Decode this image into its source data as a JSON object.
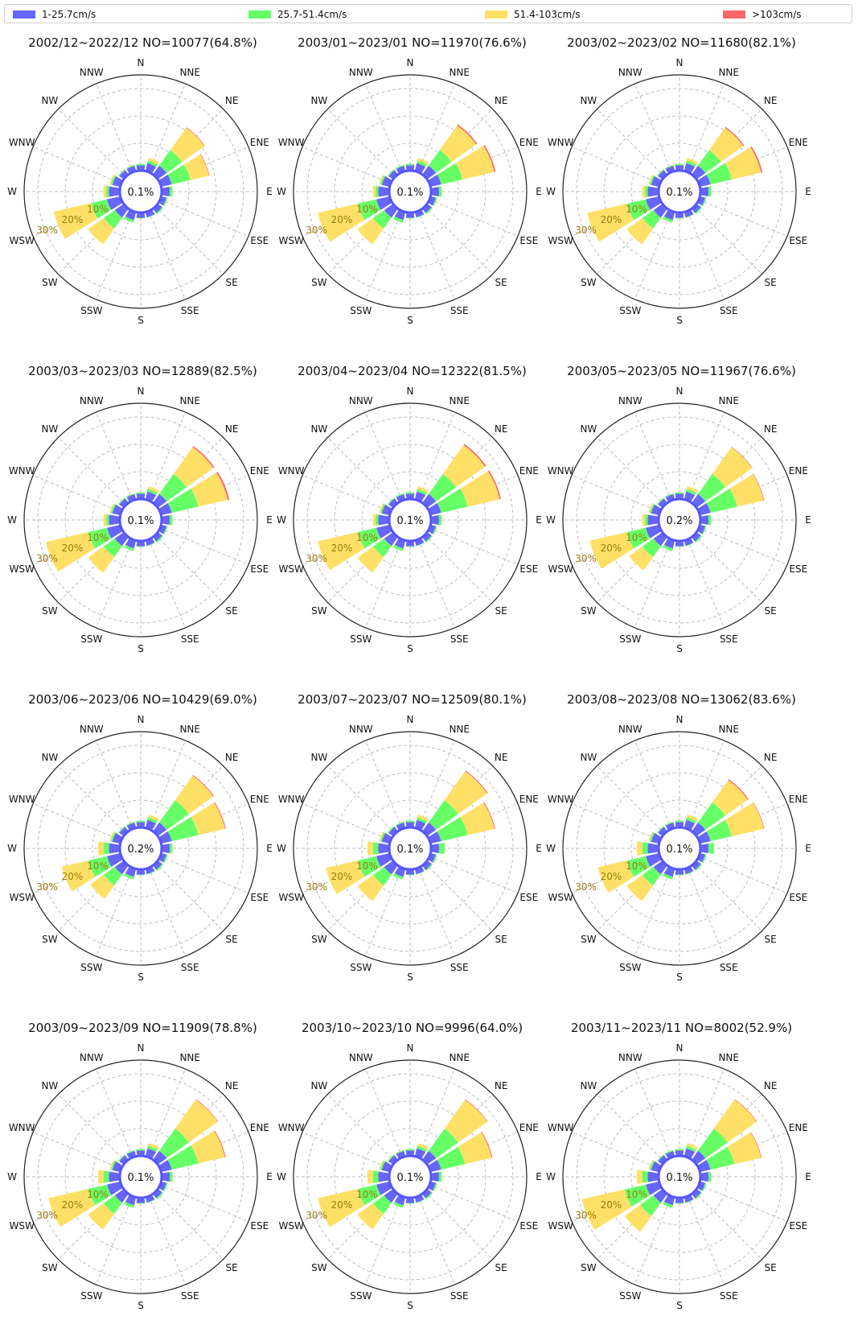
{
  "legend": [
    {
      "label": "1-25.7cm/s",
      "color": "#6666ff"
    },
    {
      "label": "25.7-51.4cm/s",
      "color": "#66ff66"
    },
    {
      "label": "51.4-103cm/s",
      "color": "#ffe066"
    },
    {
      "label": ">103cm/s",
      "color": "#ff6666"
    }
  ],
  "chart_data": {
    "type": "wind-rose",
    "directions": [
      "N",
      "NNE",
      "NE",
      "ENE",
      "E",
      "ESE",
      "SE",
      "SSE",
      "S",
      "SSW",
      "SW",
      "WSW",
      "W",
      "WNW",
      "NW",
      "NNW"
    ],
    "ring_labels": [
      "10%",
      "20%",
      "30%"
    ],
    "ring_values": [
      10,
      20,
      30
    ],
    "rmax": 35,
    "speed_bins": [
      "1-25.7cm/s",
      "25.7-51.4cm/s",
      "51.4-103cm/s",
      ">103cm/s"
    ],
    "panels": [
      {
        "title": "2002/12~2022/12 NO=10077(64.8%)",
        "calm": "0.1%",
        "series": [
          [
            2,
            3,
            4,
            4,
            3,
            2,
            2,
            2,
            2,
            3,
            4,
            5,
            4,
            3,
            2,
            2
          ],
          [
            0.5,
            1,
            7,
            7,
            1,
            0.5,
            0.5,
            0.2,
            0.2,
            1,
            5,
            6,
            1,
            0.6,
            0.4,
            0.4
          ],
          [
            0,
            1,
            10,
            7,
            0,
            0,
            0,
            0,
            0,
            0,
            7,
            14,
            1,
            0.4,
            0,
            0
          ],
          [
            0,
            0,
            0.2,
            0.2,
            0,
            0,
            0,
            0,
            0,
            0,
            0,
            0,
            0,
            0,
            0,
            0
          ]
        ]
      },
      {
        "title": "2003/01~2023/01 NO=11970(76.6%)",
        "calm": "0.1%",
        "series": [
          [
            2,
            3,
            4,
            4,
            3,
            2,
            2,
            2,
            2,
            3,
            4,
            5,
            4,
            3,
            2,
            2
          ],
          [
            0.5,
            1,
            7,
            8,
            1,
            0.5,
            0.5,
            0.2,
            0.2,
            1,
            5,
            7,
            1,
            0.6,
            0.4,
            0.4
          ],
          [
            0,
            1,
            11,
            12,
            0,
            0,
            0,
            0,
            0,
            0,
            7,
            15,
            1,
            0.4,
            0,
            0
          ],
          [
            0,
            0,
            0.5,
            0.5,
            0,
            0,
            0,
            0,
            0,
            0,
            0,
            0,
            0,
            0,
            0,
            0
          ]
        ]
      },
      {
        "title": "2003/02~2023/02 NO=11680(82.1%)",
        "calm": "0.1%",
        "series": [
          [
            2,
            3,
            4,
            4,
            3,
            2,
            2,
            2,
            2,
            3,
            4,
            5,
            4,
            3,
            2,
            2
          ],
          [
            0.5,
            1,
            7,
            8,
            1,
            0.5,
            0.5,
            0.2,
            0.2,
            1,
            5,
            7,
            1,
            0.6,
            0.4,
            0.4
          ],
          [
            0,
            1,
            10,
            11,
            0,
            0,
            0,
            0,
            0,
            0,
            7,
            15,
            1,
            0.4,
            0,
            0
          ],
          [
            0,
            0,
            0.4,
            0.5,
            0,
            0,
            0,
            0,
            0,
            0,
            0,
            0,
            0,
            0,
            0,
            0
          ]
        ]
      },
      {
        "title": "2003/03~2023/03 NO=12889(82.5%)",
        "calm": "0.1%",
        "series": [
          [
            2,
            3,
            4,
            4,
            3,
            2,
            2,
            2,
            2,
            3,
            4,
            5,
            4,
            3,
            2,
            2
          ],
          [
            0.5,
            1,
            9,
            10,
            1,
            0.5,
            0.5,
            0.2,
            0.2,
            1,
            5,
            7,
            1,
            0.6,
            0.4,
            0.4
          ],
          [
            0,
            1,
            12,
            11,
            0,
            0,
            0,
            0,
            0,
            0,
            7,
            16,
            1,
            0.4,
            0,
            0
          ],
          [
            0,
            0,
            0.5,
            0.6,
            0,
            0,
            0,
            0,
            0,
            0,
            0,
            0,
            0,
            0,
            0,
            0
          ]
        ]
      },
      {
        "title": "2003/04~2023/04 NO=12322(81.5%)",
        "calm": "0.1%",
        "series": [
          [
            2,
            3,
            4,
            4,
            3,
            2,
            2,
            2,
            2,
            3,
            4,
            5,
            4,
            3,
            2,
            2
          ],
          [
            0.5,
            1,
            9,
            10,
            1,
            0.5,
            0.5,
            0.2,
            0.2,
            1,
            5,
            7,
            1,
            0.6,
            0.4,
            0.4
          ],
          [
            0,
            1,
            13,
            12,
            0,
            0,
            0,
            0,
            0,
            0,
            7,
            15,
            1,
            0.4,
            0,
            0
          ],
          [
            0,
            0,
            0.5,
            0.5,
            0,
            0,
            0,
            0,
            0,
            0,
            0,
            0,
            0,
            0,
            0,
            0
          ]
        ]
      },
      {
        "title": "2003/05~2023/05 NO=11967(76.6%)",
        "calm": "0.2%",
        "series": [
          [
            2,
            3,
            4,
            4,
            3,
            2,
            2,
            2,
            2,
            3,
            4,
            5,
            4,
            3,
            2,
            2
          ],
          [
            0.5,
            1,
            9,
            10,
            1,
            0.5,
            0.5,
            0.2,
            0.2,
            1,
            5,
            7,
            1,
            0.6,
            0.4,
            0.4
          ],
          [
            0,
            1,
            12,
            10,
            0,
            0,
            0,
            0,
            0,
            0,
            6,
            14,
            1,
            0.4,
            0,
            0
          ],
          [
            0,
            0,
            0.2,
            0.2,
            0,
            0,
            0,
            0,
            0,
            0,
            0,
            0,
            0,
            0,
            0,
            0
          ]
        ]
      },
      {
        "title": "2003/06~2023/06 NO=10429(69.0%)",
        "calm": "0.2%",
        "series": [
          [
            2,
            3,
            4,
            4,
            3,
            2,
            2,
            2,
            2,
            3,
            4,
            5,
            4,
            3,
            2,
            2
          ],
          [
            0.5,
            1,
            10,
            10,
            1,
            0.5,
            0.5,
            0.2,
            0.2,
            1,
            5,
            7,
            2,
            0.6,
            0.4,
            0.4
          ],
          [
            0,
            1,
            11,
            10,
            0,
            0,
            0,
            0,
            0,
            0,
            6,
            10,
            2,
            0.4,
            0,
            0
          ],
          [
            0,
            0,
            0.3,
            0.3,
            0,
            0,
            0,
            0,
            0,
            0,
            0,
            0,
            0,
            0,
            0,
            0
          ]
        ]
      },
      {
        "title": "2003/07~2023/07 NO=12509(80.1%)",
        "calm": "0.1%",
        "series": [
          [
            2,
            3,
            4,
            4,
            3,
            2,
            2,
            2,
            2,
            3,
            4,
            5,
            4,
            3,
            2,
            2
          ],
          [
            0.5,
            1,
            10,
            10,
            2,
            0.5,
            0.5,
            0.2,
            0.2,
            1,
            5,
            7,
            2,
            0.6,
            0.4,
            0.4
          ],
          [
            0,
            1,
            13,
            10,
            0,
            0,
            0,
            0,
            0,
            0,
            7,
            12,
            2,
            0.4,
            0,
            0
          ],
          [
            0,
            0,
            0.3,
            0.3,
            0,
            0,
            0,
            0,
            0,
            0,
            0,
            0,
            0,
            0,
            0,
            0
          ]
        ]
      },
      {
        "title": "2003/08~2023/08 NO=13062(83.6%)",
        "calm": "0.1%",
        "series": [
          [
            2,
            3,
            4,
            4,
            3,
            2,
            2,
            2,
            2,
            3,
            4,
            5,
            4,
            3,
            2,
            2
          ],
          [
            0.5,
            1,
            9,
            8,
            2,
            0.5,
            0.5,
            0.2,
            0.2,
            1,
            5,
            7,
            2,
            0.6,
            0.4,
            0.4
          ],
          [
            0,
            1,
            10,
            12,
            0,
            0,
            0,
            0,
            0,
            0,
            7,
            11,
            2,
            0.4,
            0,
            0
          ],
          [
            0,
            0,
            0.4,
            0.2,
            0,
            0,
            0,
            0,
            0,
            0,
            0,
            0,
            0,
            0,
            0,
            0
          ]
        ]
      },
      {
        "title": "2003/09~2023/09 NO=11909(78.8%)",
        "calm": "0.1%",
        "series": [
          [
            2,
            3,
            4,
            4,
            3,
            2,
            2,
            2,
            2,
            3,
            4,
            5,
            4,
            3,
            2,
            2
          ],
          [
            0.5,
            1,
            10,
            10,
            1,
            0.5,
            0.5,
            0.2,
            0.2,
            1,
            5,
            7,
            2,
            0.6,
            0.4,
            0.4
          ],
          [
            0,
            1,
            13,
            10,
            0,
            0,
            0,
            0,
            0,
            0,
            7,
            15,
            2,
            0.4,
            0,
            0
          ],
          [
            0,
            0,
            0.2,
            0.3,
            0,
            0,
            0,
            0,
            0,
            0,
            0,
            0,
            0,
            0,
            0,
            0
          ]
        ]
      },
      {
        "title": "2003/10~2023/10 NO=9996(64.0%)",
        "calm": "0.1%",
        "series": [
          [
            2,
            3,
            4,
            4,
            3,
            2,
            2,
            2,
            2,
            3,
            4,
            5,
            4,
            3,
            2,
            2
          ],
          [
            0.5,
            1,
            10,
            9,
            1,
            0.5,
            0.5,
            0.2,
            0.2,
            1,
            5,
            7,
            2,
            0.6,
            0.4,
            0.4
          ],
          [
            0,
            1,
            13,
            10,
            0,
            0,
            0,
            0,
            0,
            0,
            7,
            15,
            2,
            0.4,
            0,
            0
          ],
          [
            0,
            0,
            0.2,
            0.3,
            0,
            0,
            0,
            0,
            0,
            0,
            0,
            0,
            0,
            0,
            0,
            0
          ]
        ]
      },
      {
        "title": "2003/11~2023/11 NO=8002(52.9%)",
        "calm": "0.1%",
        "series": [
          [
            2,
            3,
            4,
            4,
            3,
            2,
            2,
            2,
            2,
            3,
            4,
            5,
            4,
            3,
            2,
            2
          ],
          [
            0.5,
            1,
            10,
            9,
            1,
            0.5,
            0.5,
            0.2,
            0.2,
            1,
            6,
            8,
            2,
            0.6,
            0.4,
            0.4
          ],
          [
            0,
            1,
            13,
            10,
            0,
            0,
            0,
            0,
            0,
            0,
            7,
            16,
            2,
            0.4,
            0,
            0
          ],
          [
            0,
            0,
            0.2,
            0.2,
            0,
            0,
            0,
            0,
            0,
            0,
            0,
            0,
            0,
            0,
            0,
            0
          ]
        ]
      }
    ]
  }
}
